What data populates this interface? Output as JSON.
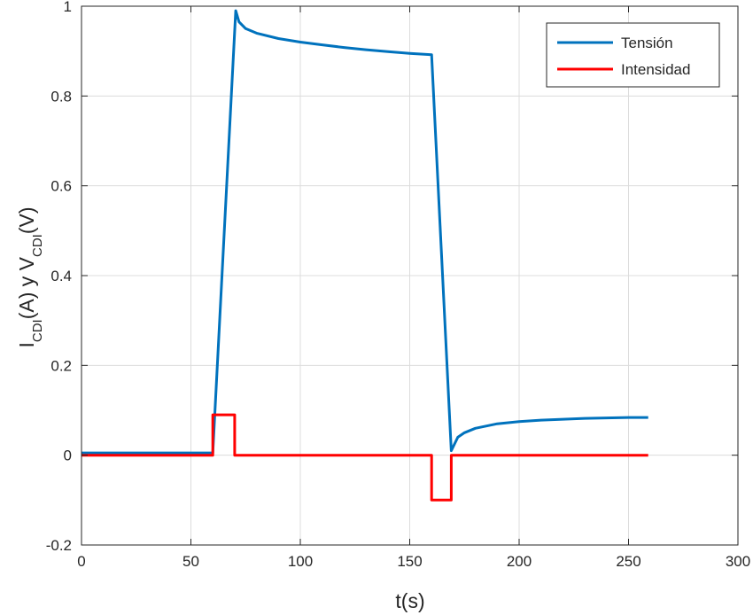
{
  "chart_data": {
    "type": "line",
    "xlabel": "t(s)",
    "ylabel": {
      "parts": [
        {
          "text": "I",
          "sub": false
        },
        {
          "text": "CDI",
          "sub": true
        },
        {
          "text": "(A)  y  V",
          "sub": false
        },
        {
          "text": "CDI",
          "sub": true
        },
        {
          "text": "(V)",
          "sub": false
        }
      ]
    },
    "xlim": [
      0,
      300
    ],
    "ylim": [
      -0.2,
      1
    ],
    "xticks": [
      0,
      50,
      100,
      150,
      200,
      250,
      300
    ],
    "yticks": [
      -0.2,
      0,
      0.2,
      0.4,
      0.6,
      0.8,
      1
    ],
    "xtick_labels": [
      "0",
      "50",
      "100",
      "150",
      "200",
      "250",
      "300"
    ],
    "ytick_labels": [
      "-0.2",
      "0",
      "0.2",
      "0.4",
      "0.6",
      "0.8",
      "1"
    ],
    "grid": true,
    "legend_position": "top-right",
    "series": [
      {
        "name": "Tensión",
        "color": "#0072BD",
        "points": [
          [
            0,
            0.005
          ],
          [
            60,
            0.005
          ],
          [
            70.5,
            0.99
          ],
          [
            72,
            0.965
          ],
          [
            75,
            0.95
          ],
          [
            80,
            0.94
          ],
          [
            90,
            0.928
          ],
          [
            100,
            0.92
          ],
          [
            110,
            0.914
          ],
          [
            120,
            0.908
          ],
          [
            130,
            0.903
          ],
          [
            140,
            0.899
          ],
          [
            150,
            0.895
          ],
          [
            160,
            0.892
          ],
          [
            169,
            0.01
          ],
          [
            172,
            0.04
          ],
          [
            175,
            0.05
          ],
          [
            180,
            0.06
          ],
          [
            190,
            0.07
          ],
          [
            200,
            0.075
          ],
          [
            210,
            0.078
          ],
          [
            220,
            0.08
          ],
          [
            230,
            0.082
          ],
          [
            240,
            0.083
          ],
          [
            250,
            0.084
          ],
          [
            259,
            0.084
          ]
        ]
      },
      {
        "name": "Intensidad",
        "color": "#FF0000",
        "points": [
          [
            0,
            0
          ],
          [
            60,
            0
          ],
          [
            60,
            0.09
          ],
          [
            70,
            0.09
          ],
          [
            70,
            0
          ],
          [
            160,
            0
          ],
          [
            160,
            -0.1
          ],
          [
            169,
            -0.1
          ],
          [
            169,
            0
          ],
          [
            259,
            0
          ]
        ]
      }
    ]
  }
}
